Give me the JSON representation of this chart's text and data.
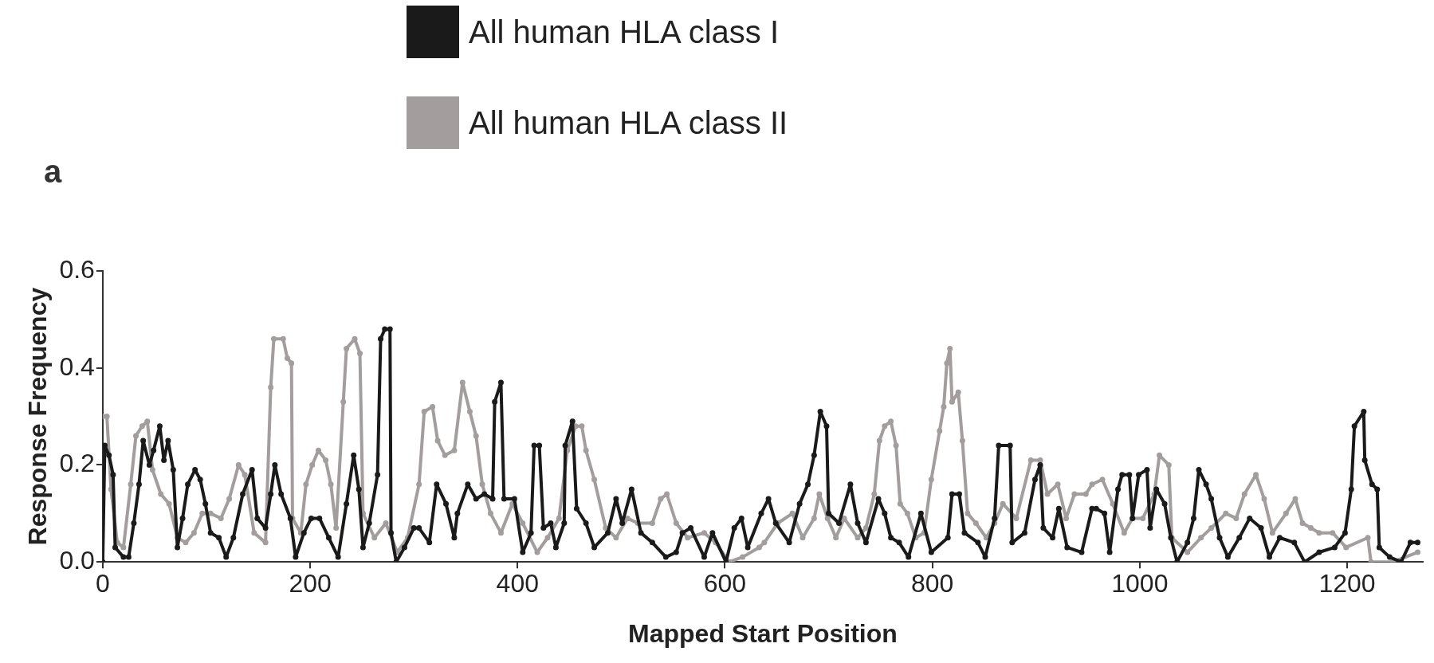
{
  "chart_data": {
    "type": "line",
    "xlabel": "Mapped Start Position",
    "ylabel": "Response Frequency",
    "annotations": [
      "a"
    ],
    "xlim": [
      0,
      1273
    ],
    "xticks": [
      0,
      200,
      400,
      600,
      800,
      1000,
      1200
    ],
    "ylim": [
      0,
      0.6
    ],
    "yticks": [
      {
        "value": 0,
        "label": "0.0"
      },
      {
        "value": 0.2,
        "label": "0.2"
      },
      {
        "value": 0.4,
        "label": "0.4"
      },
      {
        "value": 0.6,
        "label": "0.6"
      }
    ],
    "grid": false,
    "legend": "top",
    "marker": "circle",
    "line_style": "solid",
    "series": [
      {
        "name": "All human HLA class I",
        "color": "#1a1a1a",
        "x": [
          0,
          2,
          6,
          10,
          12,
          20,
          25,
          30,
          35,
          39,
          45,
          49,
          55,
          59,
          63,
          68,
          72,
          77,
          82,
          89,
          94,
          99,
          104,
          112,
          119,
          126,
          135,
          144,
          149,
          157,
          162,
          166,
          172,
          181,
          186,
          194,
          201,
          209,
          218,
          227,
          235,
          242,
          247,
          251,
          257,
          265,
          268,
          272,
          277,
          278,
          283,
          291,
          300,
          305,
          315,
          322,
          331,
          339,
          342,
          352,
          360,
          368,
          376,
          378,
          384,
          387,
          397,
          405,
          413,
          416,
          421,
          425,
          432,
          437,
          445,
          446,
          453,
          457,
          466,
          474,
          487,
          495,
          501,
          510,
          519,
          530,
          543,
          553,
          559,
          567,
          580,
          588,
          601,
          609,
          616,
          622,
          635,
          642,
          649,
          662,
          672,
          680,
          686,
          692,
          698,
          700,
          710,
          721,
          728,
          736,
          748,
          754,
          760,
          768,
          777,
          789,
          799,
          815,
          819,
          826,
          831,
          844,
          851,
          860,
          864,
          875,
          877,
          889,
          899,
          904,
          907,
          916,
          922,
          930,
          944,
          954,
          958,
          966,
          971,
          979,
          983,
          990,
          993,
          999,
          1007,
          1010,
          1016,
          1024,
          1030,
          1036,
          1046,
          1052,
          1057,
          1064,
          1069,
          1077,
          1085,
          1096,
          1106,
          1117,
          1125,
          1135,
          1149,
          1159,
          1173,
          1188,
          1198,
          1204,
          1207,
          1216,
          1217,
          1224,
          1229,
          1231,
          1241,
          1252,
          1261,
          1268
        ],
        "values": [
          0,
          0.24,
          0.22,
          0.18,
          0.03,
          0.01,
          0.01,
          0.08,
          0.16,
          0.25,
          0.2,
          0.23,
          0.28,
          0.21,
          0.25,
          0.19,
          0.03,
          0.09,
          0.16,
          0.19,
          0.17,
          0.12,
          0.06,
          0.05,
          0.01,
          0.05,
          0.14,
          0.19,
          0.09,
          0.07,
          0.14,
          0.2,
          0.14,
          0.09,
          0.01,
          0.06,
          0.09,
          0.09,
          0.05,
          0.01,
          0.12,
          0.22,
          0.15,
          0.03,
          0.08,
          0.18,
          0.46,
          0.48,
          0.48,
          0.06,
          0,
          0.03,
          0.07,
          0.07,
          0.04,
          0.16,
          0.12,
          0.05,
          0.1,
          0.16,
          0.13,
          0.14,
          0.13,
          0.33,
          0.37,
          0.13,
          0.13,
          0.02,
          0.06,
          0.24,
          0.24,
          0.07,
          0.08,
          0.03,
          0.08,
          0.24,
          0.29,
          0.11,
          0.08,
          0.03,
          0.06,
          0.13,
          0.08,
          0.15,
          0.06,
          0.04,
          0.01,
          0.02,
          0.06,
          0.07,
          0.01,
          0.06,
          0,
          0.07,
          0.09,
          0.03,
          0.1,
          0.13,
          0.08,
          0.04,
          0.12,
          0.16,
          0.22,
          0.31,
          0.28,
          0.1,
          0.08,
          0.16,
          0.08,
          0.04,
          0.13,
          0.1,
          0.05,
          0.04,
          0.01,
          0.1,
          0.02,
          0.05,
          0.14,
          0.14,
          0.06,
          0.04,
          0.01,
          0.09,
          0.24,
          0.24,
          0.04,
          0.06,
          0.17,
          0.2,
          0.07,
          0.05,
          0.11,
          0.03,
          0.02,
          0.11,
          0.11,
          0.1,
          0.02,
          0.15,
          0.18,
          0.18,
          0.09,
          0.18,
          0.19,
          0.07,
          0.15,
          0.12,
          0.05,
          0,
          0.04,
          0.09,
          0.19,
          0.16,
          0.13,
          0.05,
          0.01,
          0.05,
          0.09,
          0.07,
          0.01,
          0.05,
          0.04,
          0,
          0.02,
          0.03,
          0.06,
          0.15,
          0.28,
          0.31,
          0.21,
          0.16,
          0.15,
          0.03,
          0.01,
          0,
          0.04,
          0.04
        ]
      },
      {
        "name": "All human HLA class II",
        "color": "#a39d9d",
        "x": [
          0,
          4,
          8,
          14,
          20,
          27,
          32,
          38,
          43,
          48,
          56,
          64,
          72,
          80,
          88,
          96,
          104,
          114,
          122,
          131,
          137,
          146,
          157,
          162,
          165,
          174,
          178,
          182,
          183,
          191,
          196,
          202,
          208,
          215,
          220,
          225,
          232,
          235,
          243,
          248,
          251,
          262,
          273,
          284,
          294,
          305,
          310,
          318,
          323,
          330,
          339,
          347,
          354,
          360,
          366,
          374,
          384,
          395,
          405,
          419,
          429,
          440,
          448,
          456,
          462,
          466,
          474,
          485,
          495,
          506,
          516,
          530,
          538,
          544,
          553,
          564,
          580,
          591,
          604,
          617,
          633,
          638,
          651,
          665,
          675,
          686,
          691,
          699,
          707,
          715,
          728,
          736,
          744,
          749,
          754,
          760,
          765,
          769,
          776,
          784,
          792,
          799,
          807,
          811,
          814,
          817,
          819,
          825,
          829,
          834,
          842,
          852,
          860,
          868,
          881,
          895,
          904,
          911,
          921,
          929,
          937,
          948,
          954,
          964,
          974,
          985,
          993,
          1003,
          1014,
          1019,
          1028,
          1031,
          1046,
          1059,
          1069,
          1083,
          1093,
          1101,
          1112,
          1120,
          1128,
          1141,
          1150,
          1157,
          1165,
          1173,
          1186,
          1199,
          1220,
          1223,
          1244,
          1268
        ],
        "values": [
          0.3,
          0.3,
          0.15,
          0.04,
          0.03,
          0.16,
          0.26,
          0.28,
          0.29,
          0.19,
          0.14,
          0.12,
          0.05,
          0.04,
          0.06,
          0.1,
          0.1,
          0.09,
          0.13,
          0.2,
          0.18,
          0.06,
          0.04,
          0.36,
          0.46,
          0.46,
          0.42,
          0.41,
          0.09,
          0.06,
          0.16,
          0.2,
          0.23,
          0.21,
          0.16,
          0.07,
          0.33,
          0.44,
          0.46,
          0.43,
          0.1,
          0.05,
          0.08,
          0.02,
          0.05,
          0.16,
          0.31,
          0.32,
          0.25,
          0.22,
          0.23,
          0.37,
          0.31,
          0.26,
          0.16,
          0.1,
          0.06,
          0.12,
          0.08,
          0.02,
          0.05,
          0.09,
          0.23,
          0.28,
          0.28,
          0.23,
          0.17,
          0.07,
          0.05,
          0.09,
          0.08,
          0.08,
          0.13,
          0.14,
          0.08,
          0.05,
          0.06,
          0.04,
          0,
          0.01,
          0.03,
          0.04,
          0.08,
          0.1,
          0.05,
          0.09,
          0.14,
          0.09,
          0.05,
          0.09,
          0.05,
          0.07,
          0.14,
          0.25,
          0.28,
          0.29,
          0.24,
          0.12,
          0.1,
          0.05,
          0.06,
          0.17,
          0.27,
          0.32,
          0.41,
          0.44,
          0.33,
          0.35,
          0.25,
          0.1,
          0.08,
          0.05,
          0.08,
          0.12,
          0.09,
          0.21,
          0.21,
          0.14,
          0.16,
          0.09,
          0.14,
          0.14,
          0.16,
          0.17,
          0.12,
          0.06,
          0.09,
          0.09,
          0.14,
          0.22,
          0.2,
          0.05,
          0.02,
          0.05,
          0.07,
          0.1,
          0.09,
          0.14,
          0.18,
          0.13,
          0.06,
          0.1,
          0.13,
          0.08,
          0.07,
          0.06,
          0.06,
          0.03,
          0.05,
          0,
          0,
          0.02
        ]
      }
    ]
  }
}
